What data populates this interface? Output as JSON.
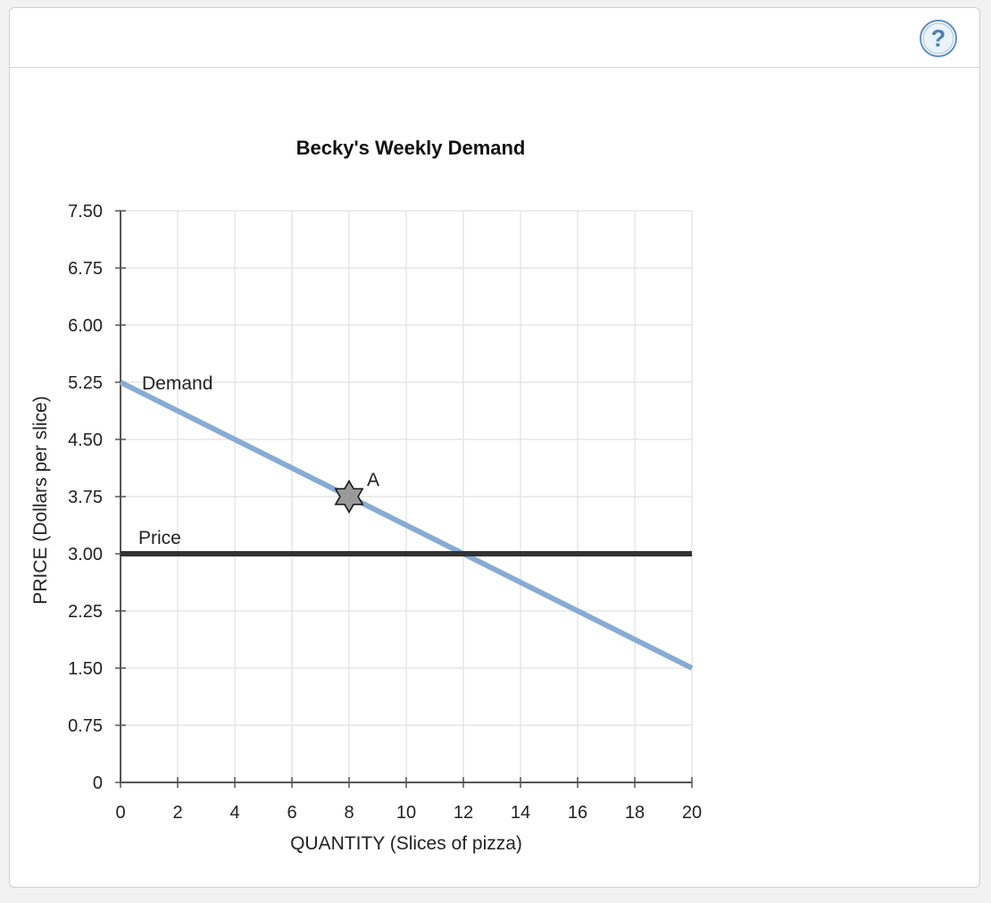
{
  "help": {
    "icon": "question-mark-icon",
    "label": "?"
  },
  "chart_data": {
    "type": "line",
    "title": "Becky's Weekly Demand",
    "xlabel": "QUANTITY (Slices of pizza)",
    "ylabel": "PRICE (Dollars per slice)",
    "xlim": [
      0,
      20
    ],
    "ylim": [
      0,
      7.5
    ],
    "grid": true,
    "x_ticks": [
      0,
      2,
      4,
      6,
      8,
      10,
      12,
      14,
      16,
      18,
      20
    ],
    "x_tick_labels": [
      "0",
      "2",
      "4",
      "6",
      "8",
      "10",
      "12",
      "14",
      "16",
      "18",
      "20"
    ],
    "y_ticks": [
      0,
      0.75,
      1.5,
      2.25,
      3.0,
      3.75,
      4.5,
      5.25,
      6.0,
      6.75,
      7.5
    ],
    "y_tick_labels": [
      "0",
      "0.75",
      "1.50",
      "2.25",
      "3.00",
      "3.75",
      "4.50",
      "5.25",
      "6.00",
      "6.75",
      "7.50"
    ],
    "series": [
      {
        "name": "Demand",
        "color": "#87acd3",
        "points": [
          [
            0,
            5.25
          ],
          [
            20,
            1.5
          ]
        ]
      },
      {
        "name": "Price",
        "color": "#333333",
        "points": [
          [
            0,
            3.0
          ],
          [
            20,
            3.0
          ]
        ]
      }
    ],
    "annotations": [
      {
        "label": "A",
        "x": 8,
        "y": 3.75,
        "marker": "star",
        "color": "#999999"
      }
    ]
  }
}
